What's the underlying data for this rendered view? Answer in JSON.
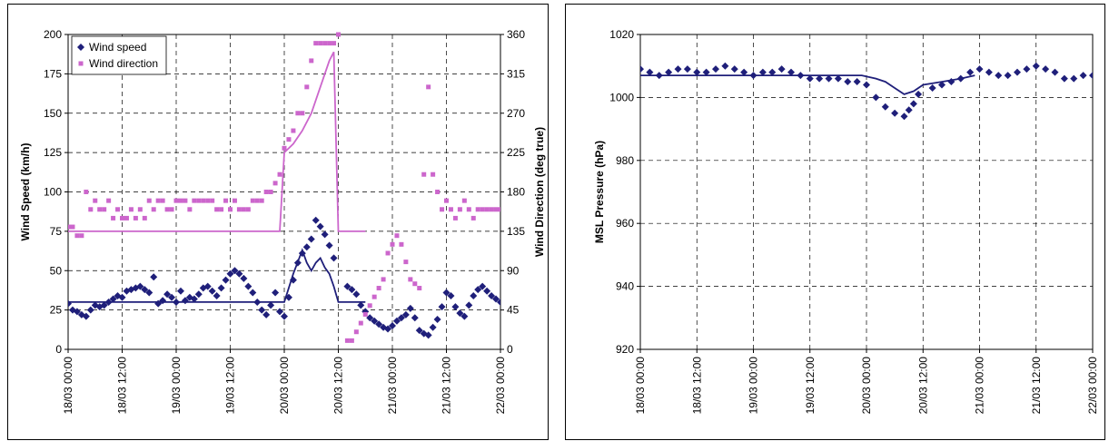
{
  "chart_data": [
    {
      "type": "scatter",
      "title": "",
      "xlabel": "",
      "ylabel": "Wind Speed (km/h)",
      "y2label": "Wind Direction (deg true)",
      "xlim": [
        "18/03 00:00",
        "22/03 00:00"
      ],
      "ylim": [
        0,
        200
      ],
      "y2lim": [
        0,
        360
      ],
      "yticks": [
        "0",
        "25",
        "50",
        "75",
        "100",
        "125",
        "150",
        "175",
        "200"
      ],
      "y2ticks": [
        "0",
        "45",
        "90",
        "135",
        "180",
        "225",
        "270",
        "315",
        "360"
      ],
      "xticks": [
        "18/03 00:00",
        "18/03 12:00",
        "19/03 00:00",
        "19/03 12:00",
        "20/03 00:00",
        "20/03 12:00",
        "21/03 00:00",
        "21/03 12:00",
        "22/03 00:00"
      ],
      "grid": true,
      "legend": "top-left",
      "series": [
        {
          "name": "Wind speed",
          "axis": "left",
          "kind": "markers",
          "marker": "diamond",
          "color": "#1f1f7a",
          "x": [
            "18/03 00:00",
            "18/03 01:00",
            "18/03 02:00",
            "18/03 03:00",
            "18/03 04:00",
            "18/03 05:00",
            "18/03 06:00",
            "18/03 07:00",
            "18/03 08:00",
            "18/03 09:00",
            "18/03 10:00",
            "18/03 11:00",
            "18/03 12:00",
            "18/03 13:00",
            "18/03 14:00",
            "18/03 15:00",
            "18/03 16:00",
            "18/03 17:00",
            "18/03 18:00",
            "18/03 19:00",
            "18/03 20:00",
            "18/03 21:00",
            "18/03 22:00",
            "18/03 23:00",
            "19/03 00:00",
            "19/03 01:00",
            "19/03 02:00",
            "19/03 03:00",
            "19/03 04:00",
            "19/03 05:00",
            "19/03 06:00",
            "19/03 07:00",
            "19/03 08:00",
            "19/03 09:00",
            "19/03 10:00",
            "19/03 11:00",
            "19/03 12:00",
            "19/03 13:00",
            "19/03 14:00",
            "19/03 15:00",
            "19/03 16:00",
            "19/03 17:00",
            "19/03 18:00",
            "19/03 19:00",
            "19/03 20:00",
            "19/03 21:00",
            "19/03 22:00",
            "19/03 23:00",
            "20/03 00:00",
            "20/03 01:00",
            "20/03 02:00",
            "20/03 03:00",
            "20/03 04:00",
            "20/03 05:00",
            "20/03 06:00",
            "20/03 07:00",
            "20/03 08:00",
            "20/03 09:00",
            "20/03 10:00",
            "20/03 11:00",
            "20/03 14:00",
            "20/03 15:00",
            "20/03 16:00",
            "20/03 17:00",
            "20/03 18:00",
            "20/03 19:00",
            "20/03 20:00",
            "20/03 21:00",
            "20/03 22:00",
            "20/03 23:00",
            "21/03 00:00",
            "21/03 01:00",
            "21/03 02:00",
            "21/03 03:00",
            "21/03 04:00",
            "21/03 05:00",
            "21/03 06:00",
            "21/03 07:00",
            "21/03 08:00",
            "21/03 09:00",
            "21/03 10:00",
            "21/03 11:00",
            "21/03 12:00",
            "21/03 13:00",
            "21/03 14:00",
            "21/03 15:00",
            "21/03 16:00",
            "21/03 17:00",
            "21/03 18:00",
            "21/03 19:00",
            "21/03 20:00",
            "21/03 21:00",
            "21/03 22:00",
            "21/03 23:00",
            "22/03 00:00"
          ],
          "y": [
            29,
            25,
            24,
            22,
            21,
            25,
            28,
            27,
            28,
            30,
            32,
            34,
            33,
            37,
            38,
            39,
            40,
            38,
            36,
            46,
            29,
            31,
            35,
            33,
            30,
            37,
            31,
            33,
            32,
            35,
            39,
            40,
            37,
            34,
            39,
            44,
            48,
            50,
            48,
            45,
            40,
            36,
            30,
            25,
            22,
            28,
            36,
            24,
            21,
            33,
            44,
            55,
            61,
            65,
            70,
            82,
            78,
            73,
            66,
            58,
            40,
            38,
            35,
            28,
            24,
            20,
            18,
            16,
            14,
            13,
            15,
            18,
            20,
            22,
            26,
            20,
            12,
            10,
            9,
            14,
            19,
            27,
            36,
            34,
            27,
            23,
            21,
            28,
            34,
            38,
            40,
            37,
            34,
            32,
            30
          ]
        },
        {
          "name": "Wind direction",
          "axis": "right",
          "kind": "markers",
          "marker": "square",
          "color": "#cc66cc",
          "x": [
            "18/03 00:00",
            "18/03 01:00",
            "18/03 02:00",
            "18/03 03:00",
            "18/03 04:00",
            "18/03 05:00",
            "18/03 06:00",
            "18/03 07:00",
            "18/03 08:00",
            "18/03 09:00",
            "18/03 10:00",
            "18/03 11:00",
            "18/03 12:00",
            "18/03 13:00",
            "18/03 14:00",
            "18/03 15:00",
            "18/03 16:00",
            "18/03 17:00",
            "18/03 18:00",
            "18/03 19:00",
            "18/03 20:00",
            "18/03 21:00",
            "18/03 22:00",
            "18/03 23:00",
            "19/03 00:00",
            "19/03 01:00",
            "19/03 02:00",
            "19/03 03:00",
            "19/03 04:00",
            "19/03 05:00",
            "19/03 06:00",
            "19/03 07:00",
            "19/03 08:00",
            "19/03 09:00",
            "19/03 10:00",
            "19/03 11:00",
            "19/03 12:00",
            "19/03 13:00",
            "19/03 14:00",
            "19/03 15:00",
            "19/03 16:00",
            "19/03 17:00",
            "19/03 18:00",
            "19/03 19:00",
            "19/03 20:00",
            "19/03 21:00",
            "19/03 22:00",
            "19/03 23:00",
            "20/03 00:00",
            "20/03 01:00",
            "20/03 02:00",
            "20/03 03:00",
            "20/03 04:00",
            "20/03 05:00",
            "20/03 06:00",
            "20/03 07:00",
            "20/03 08:00",
            "20/03 09:00",
            "20/03 10:00",
            "20/03 11:00",
            "20/03 12:00",
            "20/03 14:00",
            "20/03 15:00",
            "20/03 16:00",
            "20/03 17:00",
            "20/03 18:00",
            "20/03 19:00",
            "20/03 20:00",
            "20/03 21:00",
            "20/03 22:00",
            "20/03 23:00",
            "21/03 00:00",
            "21/03 01:00",
            "21/03 02:00",
            "21/03 03:00",
            "21/03 04:00",
            "21/03 05:00",
            "21/03 06:00",
            "21/03 07:00",
            "21/03 08:00",
            "21/03 09:00",
            "21/03 10:00",
            "21/03 11:00",
            "21/03 12:00",
            "21/03 13:00",
            "21/03 14:00",
            "21/03 15:00",
            "21/03 16:00",
            "21/03 17:00",
            "21/03 18:00",
            "21/03 19:00",
            "21/03 20:00",
            "21/03 21:00",
            "21/03 22:00",
            "21/03 23:00",
            "22/03 00:00"
          ],
          "y": [
            140,
            140,
            130,
            130,
            180,
            160,
            170,
            160,
            160,
            170,
            150,
            160,
            150,
            150,
            160,
            150,
            160,
            150,
            170,
            160,
            170,
            170,
            160,
            160,
            170,
            170,
            170,
            160,
            170,
            170,
            170,
            170,
            170,
            160,
            160,
            170,
            160,
            170,
            160,
            160,
            160,
            170,
            170,
            170,
            180,
            180,
            190,
            200,
            230,
            240,
            250,
            270,
            270,
            300,
            330,
            350,
            350,
            350,
            350,
            350,
            360,
            10,
            10,
            20,
            30,
            40,
            50,
            60,
            70,
            80,
            110,
            120,
            130,
            120,
            100,
            80,
            75,
            70,
            200,
            300,
            200,
            180,
            160,
            170,
            160,
            150,
            160,
            170,
            160,
            150,
            160,
            160,
            160,
            160,
            160,
            160
          ]
        },
        {
          "name": "",
          "axis": "left",
          "kind": "line",
          "color": "#1f1f7a",
          "x": [
            "18/03 00:00",
            "19/03 23:00",
            "20/03 00:00",
            "20/03 02:00",
            "20/03 04:00",
            "20/03 05:00",
            "20/03 06:00",
            "20/03 07:00",
            "20/03 08:00",
            "20/03 09:00",
            "20/03 10:00",
            "20/03 11:00",
            "20/03 12:00",
            "20/03 18:00"
          ],
          "y": [
            30,
            30,
            30,
            48,
            63,
            55,
            50,
            55,
            58,
            52,
            48,
            40,
            30,
            30
          ]
        },
        {
          "name": "",
          "axis": "right",
          "kind": "line",
          "color": "#cc66cc",
          "x": [
            "18/03 00:00",
            "19/03 23:00",
            "20/03 00:00",
            "20/03 02:00",
            "20/03 04:00",
            "20/03 06:00",
            "20/03 08:00",
            "20/03 10:00",
            "20/03 11:00",
            "20/03 12:00",
            "20/03 18:00"
          ],
          "y": [
            135,
            135,
            225,
            235,
            250,
            270,
            300,
            330,
            340,
            135,
            135
          ]
        }
      ]
    },
    {
      "type": "scatter",
      "title": "",
      "xlabel": "",
      "ylabel": "MSL Pressure (hPa)",
      "xlim": [
        "18/03 00:00",
        "22/03 00:00"
      ],
      "ylim": [
        920,
        1020
      ],
      "yticks": [
        "920",
        "940",
        "960",
        "980",
        "1000",
        "1020"
      ],
      "xticks": [
        "18/03 00:00",
        "18/03 12:00",
        "19/03 00:00",
        "19/03 12:00",
        "20/03 00:00",
        "20/03 12:00",
        "21/03 00:00",
        "21/03 12:00",
        "22/03 00:00"
      ],
      "grid": true,
      "legend": "",
      "series": [
        {
          "name": "",
          "kind": "markers",
          "marker": "diamond",
          "color": "#1f1f7a",
          "x": [
            "18/03 00:00",
            "18/03 02:00",
            "18/03 04:00",
            "18/03 06:00",
            "18/03 08:00",
            "18/03 10:00",
            "18/03 12:00",
            "18/03 14:00",
            "18/03 16:00",
            "18/03 18:00",
            "18/03 20:00",
            "18/03 22:00",
            "19/03 00:00",
            "19/03 02:00",
            "19/03 04:00",
            "19/03 06:00",
            "19/03 08:00",
            "19/03 10:00",
            "19/03 12:00",
            "19/03 14:00",
            "19/03 16:00",
            "19/03 18:00",
            "19/03 20:00",
            "19/03 22:00",
            "20/03 00:00",
            "20/03 02:00",
            "20/03 04:00",
            "20/03 06:00",
            "20/03 08:00",
            "20/03 09:00",
            "20/03 10:00",
            "20/03 11:00",
            "20/03 14:00",
            "20/03 16:00",
            "20/03 18:00",
            "20/03 20:00",
            "20/03 22:00",
            "21/03 00:00",
            "21/03 02:00",
            "21/03 04:00",
            "21/03 06:00",
            "21/03 08:00",
            "21/03 10:00",
            "21/03 12:00",
            "21/03 14:00",
            "21/03 16:00",
            "21/03 18:00",
            "21/03 20:00",
            "21/03 22:00",
            "22/03 00:00"
          ],
          "y": [
            1009,
            1008,
            1007,
            1008,
            1009,
            1009,
            1008,
            1008,
            1009,
            1010,
            1009,
            1008,
            1007,
            1008,
            1008,
            1009,
            1008,
            1007,
            1006,
            1006,
            1006,
            1006,
            1005,
            1005,
            1004,
            1000,
            997,
            995,
            994,
            996,
            998,
            1001,
            1003,
            1004,
            1005,
            1006,
            1008,
            1009,
            1008,
            1007,
            1007,
            1008,
            1009,
            1010,
            1009,
            1008,
            1006,
            1006,
            1007,
            1007
          ]
        },
        {
          "name": "",
          "kind": "line",
          "color": "#1f1f7a",
          "x": [
            "18/03 00:00",
            "19/03 23:00",
            "20/03 02:00",
            "20/03 04:00",
            "20/03 06:00",
            "20/03 08:00",
            "20/03 10:00",
            "20/03 12:00",
            "20/03 16:00",
            "20/03 20:00",
            "20/03 23:00"
          ],
          "y": [
            1007,
            1007,
            1006,
            1005,
            1003,
            1001,
            1002,
            1004,
            1005,
            1006,
            1007
          ]
        }
      ]
    }
  ]
}
